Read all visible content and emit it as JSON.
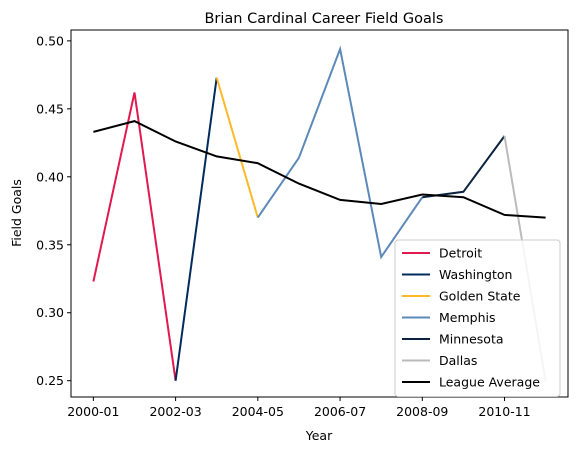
{
  "chart_data": {
    "type": "line",
    "title": "Brian Cardinal Career Field Goals",
    "xlabel": "Year",
    "ylabel": "Field Goals",
    "x": [
      "2000-01",
      "2001-02",
      "2002-03",
      "2003-04",
      "2004-05",
      "2005-06",
      "2006-07",
      "2007-08",
      "2008-09",
      "2009-10",
      "2010-11",
      "2011-12"
    ],
    "xticks": [
      "2000-01",
      "2002-03",
      "2004-05",
      "2006-07",
      "2008-09",
      "2010-11"
    ],
    "yticks": [
      "0.25",
      "0.30",
      "0.35",
      "0.40",
      "0.45",
      "0.50"
    ],
    "ylim": [
      0.238,
      0.508
    ],
    "grid": false,
    "legend_position": "lower-right",
    "series": [
      {
        "name": "Detroit",
        "color": "#e0194f",
        "x": [
          "2000-01",
          "2001-02",
          "2002-03"
        ],
        "values": [
          0.323,
          0.462,
          0.25
        ]
      },
      {
        "name": "Washington",
        "color": "#002b5c",
        "x": [
          "2002-03",
          "2003-04"
        ],
        "values": [
          0.25,
          0.473
        ]
      },
      {
        "name": "Golden State",
        "color": "#fdb927",
        "x": [
          "2003-04",
          "2004-05"
        ],
        "values": [
          0.473,
          0.37
        ]
      },
      {
        "name": "Memphis",
        "color": "#5d89b8",
        "x": [
          "2004-05",
          "2005-06",
          "2006-07",
          "2007-08",
          "2008-09"
        ],
        "values": [
          0.37,
          0.414,
          0.494,
          0.341,
          0.385
        ]
      },
      {
        "name": "Minnesota",
        "color": "#0c2340",
        "x": [
          "2008-09",
          "2009-10",
          "2010-11"
        ],
        "values": [
          0.385,
          0.389,
          0.43
        ]
      },
      {
        "name": "Dallas",
        "color": "#bbbbbb",
        "x": [
          "2010-11",
          "2011-12"
        ],
        "values": [
          0.43,
          0.25
        ]
      },
      {
        "name": "League Average",
        "color": "#000000",
        "x": [
          "2000-01",
          "2001-02",
          "2002-03",
          "2003-04",
          "2004-05",
          "2005-06",
          "2006-07",
          "2007-08",
          "2008-09",
          "2009-10",
          "2010-11",
          "2011-12"
        ],
        "values": [
          0.433,
          0.441,
          0.426,
          0.415,
          0.41,
          0.395,
          0.383,
          0.38,
          0.387,
          0.385,
          0.372,
          0.37
        ]
      }
    ]
  }
}
